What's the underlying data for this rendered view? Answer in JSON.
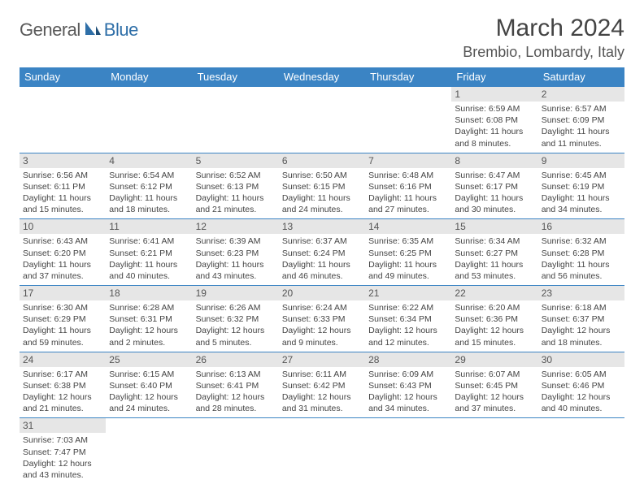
{
  "logo": {
    "text_main": "General",
    "text_blue": "Blue"
  },
  "title": "March 2024",
  "location": "Brembio, Lombardy, Italy",
  "colors": {
    "header_bg": "#3b84c4",
    "header_fg": "#ffffff",
    "daynum_bg": "#e6e6e6",
    "border": "#3b84c4",
    "text": "#444444",
    "logo_gray": "#5a5a5a",
    "logo_blue": "#2f6fa8"
  },
  "fonts": {
    "title_size_pt": 22,
    "location_size_pt": 14,
    "header_size_pt": 10,
    "daynum_size_pt": 9,
    "detail_size_pt": 8
  },
  "day_headers": [
    "Sunday",
    "Monday",
    "Tuesday",
    "Wednesday",
    "Thursday",
    "Friday",
    "Saturday"
  ],
  "weeks": [
    [
      {
        "day": "",
        "sunrise": "",
        "sunset": "",
        "daylight": ""
      },
      {
        "day": "",
        "sunrise": "",
        "sunset": "",
        "daylight": ""
      },
      {
        "day": "",
        "sunrise": "",
        "sunset": "",
        "daylight": ""
      },
      {
        "day": "",
        "sunrise": "",
        "sunset": "",
        "daylight": ""
      },
      {
        "day": "",
        "sunrise": "",
        "sunset": "",
        "daylight": ""
      },
      {
        "day": "1",
        "sunrise": "Sunrise: 6:59 AM",
        "sunset": "Sunset: 6:08 PM",
        "daylight": "Daylight: 11 hours and 8 minutes."
      },
      {
        "day": "2",
        "sunrise": "Sunrise: 6:57 AM",
        "sunset": "Sunset: 6:09 PM",
        "daylight": "Daylight: 11 hours and 11 minutes."
      }
    ],
    [
      {
        "day": "3",
        "sunrise": "Sunrise: 6:56 AM",
        "sunset": "Sunset: 6:11 PM",
        "daylight": "Daylight: 11 hours and 15 minutes."
      },
      {
        "day": "4",
        "sunrise": "Sunrise: 6:54 AM",
        "sunset": "Sunset: 6:12 PM",
        "daylight": "Daylight: 11 hours and 18 minutes."
      },
      {
        "day": "5",
        "sunrise": "Sunrise: 6:52 AM",
        "sunset": "Sunset: 6:13 PM",
        "daylight": "Daylight: 11 hours and 21 minutes."
      },
      {
        "day": "6",
        "sunrise": "Sunrise: 6:50 AM",
        "sunset": "Sunset: 6:15 PM",
        "daylight": "Daylight: 11 hours and 24 minutes."
      },
      {
        "day": "7",
        "sunrise": "Sunrise: 6:48 AM",
        "sunset": "Sunset: 6:16 PM",
        "daylight": "Daylight: 11 hours and 27 minutes."
      },
      {
        "day": "8",
        "sunrise": "Sunrise: 6:47 AM",
        "sunset": "Sunset: 6:17 PM",
        "daylight": "Daylight: 11 hours and 30 minutes."
      },
      {
        "day": "9",
        "sunrise": "Sunrise: 6:45 AM",
        "sunset": "Sunset: 6:19 PM",
        "daylight": "Daylight: 11 hours and 34 minutes."
      }
    ],
    [
      {
        "day": "10",
        "sunrise": "Sunrise: 6:43 AM",
        "sunset": "Sunset: 6:20 PM",
        "daylight": "Daylight: 11 hours and 37 minutes."
      },
      {
        "day": "11",
        "sunrise": "Sunrise: 6:41 AM",
        "sunset": "Sunset: 6:21 PM",
        "daylight": "Daylight: 11 hours and 40 minutes."
      },
      {
        "day": "12",
        "sunrise": "Sunrise: 6:39 AM",
        "sunset": "Sunset: 6:23 PM",
        "daylight": "Daylight: 11 hours and 43 minutes."
      },
      {
        "day": "13",
        "sunrise": "Sunrise: 6:37 AM",
        "sunset": "Sunset: 6:24 PM",
        "daylight": "Daylight: 11 hours and 46 minutes."
      },
      {
        "day": "14",
        "sunrise": "Sunrise: 6:35 AM",
        "sunset": "Sunset: 6:25 PM",
        "daylight": "Daylight: 11 hours and 49 minutes."
      },
      {
        "day": "15",
        "sunrise": "Sunrise: 6:34 AM",
        "sunset": "Sunset: 6:27 PM",
        "daylight": "Daylight: 11 hours and 53 minutes."
      },
      {
        "day": "16",
        "sunrise": "Sunrise: 6:32 AM",
        "sunset": "Sunset: 6:28 PM",
        "daylight": "Daylight: 11 hours and 56 minutes."
      }
    ],
    [
      {
        "day": "17",
        "sunrise": "Sunrise: 6:30 AM",
        "sunset": "Sunset: 6:29 PM",
        "daylight": "Daylight: 11 hours and 59 minutes."
      },
      {
        "day": "18",
        "sunrise": "Sunrise: 6:28 AM",
        "sunset": "Sunset: 6:31 PM",
        "daylight": "Daylight: 12 hours and 2 minutes."
      },
      {
        "day": "19",
        "sunrise": "Sunrise: 6:26 AM",
        "sunset": "Sunset: 6:32 PM",
        "daylight": "Daylight: 12 hours and 5 minutes."
      },
      {
        "day": "20",
        "sunrise": "Sunrise: 6:24 AM",
        "sunset": "Sunset: 6:33 PM",
        "daylight": "Daylight: 12 hours and 9 minutes."
      },
      {
        "day": "21",
        "sunrise": "Sunrise: 6:22 AM",
        "sunset": "Sunset: 6:34 PM",
        "daylight": "Daylight: 12 hours and 12 minutes."
      },
      {
        "day": "22",
        "sunrise": "Sunrise: 6:20 AM",
        "sunset": "Sunset: 6:36 PM",
        "daylight": "Daylight: 12 hours and 15 minutes."
      },
      {
        "day": "23",
        "sunrise": "Sunrise: 6:18 AM",
        "sunset": "Sunset: 6:37 PM",
        "daylight": "Daylight: 12 hours and 18 minutes."
      }
    ],
    [
      {
        "day": "24",
        "sunrise": "Sunrise: 6:17 AM",
        "sunset": "Sunset: 6:38 PM",
        "daylight": "Daylight: 12 hours and 21 minutes."
      },
      {
        "day": "25",
        "sunrise": "Sunrise: 6:15 AM",
        "sunset": "Sunset: 6:40 PM",
        "daylight": "Daylight: 12 hours and 24 minutes."
      },
      {
        "day": "26",
        "sunrise": "Sunrise: 6:13 AM",
        "sunset": "Sunset: 6:41 PM",
        "daylight": "Daylight: 12 hours and 28 minutes."
      },
      {
        "day": "27",
        "sunrise": "Sunrise: 6:11 AM",
        "sunset": "Sunset: 6:42 PM",
        "daylight": "Daylight: 12 hours and 31 minutes."
      },
      {
        "day": "28",
        "sunrise": "Sunrise: 6:09 AM",
        "sunset": "Sunset: 6:43 PM",
        "daylight": "Daylight: 12 hours and 34 minutes."
      },
      {
        "day": "29",
        "sunrise": "Sunrise: 6:07 AM",
        "sunset": "Sunset: 6:45 PM",
        "daylight": "Daylight: 12 hours and 37 minutes."
      },
      {
        "day": "30",
        "sunrise": "Sunrise: 6:05 AM",
        "sunset": "Sunset: 6:46 PM",
        "daylight": "Daylight: 12 hours and 40 minutes."
      }
    ],
    [
      {
        "day": "31",
        "sunrise": "Sunrise: 7:03 AM",
        "sunset": "Sunset: 7:47 PM",
        "daylight": "Daylight: 12 hours and 43 minutes."
      },
      {
        "day": "",
        "sunrise": "",
        "sunset": "",
        "daylight": ""
      },
      {
        "day": "",
        "sunrise": "",
        "sunset": "",
        "daylight": ""
      },
      {
        "day": "",
        "sunrise": "",
        "sunset": "",
        "daylight": ""
      },
      {
        "day": "",
        "sunrise": "",
        "sunset": "",
        "daylight": ""
      },
      {
        "day": "",
        "sunrise": "",
        "sunset": "",
        "daylight": ""
      },
      {
        "day": "",
        "sunrise": "",
        "sunset": "",
        "daylight": ""
      }
    ]
  ]
}
